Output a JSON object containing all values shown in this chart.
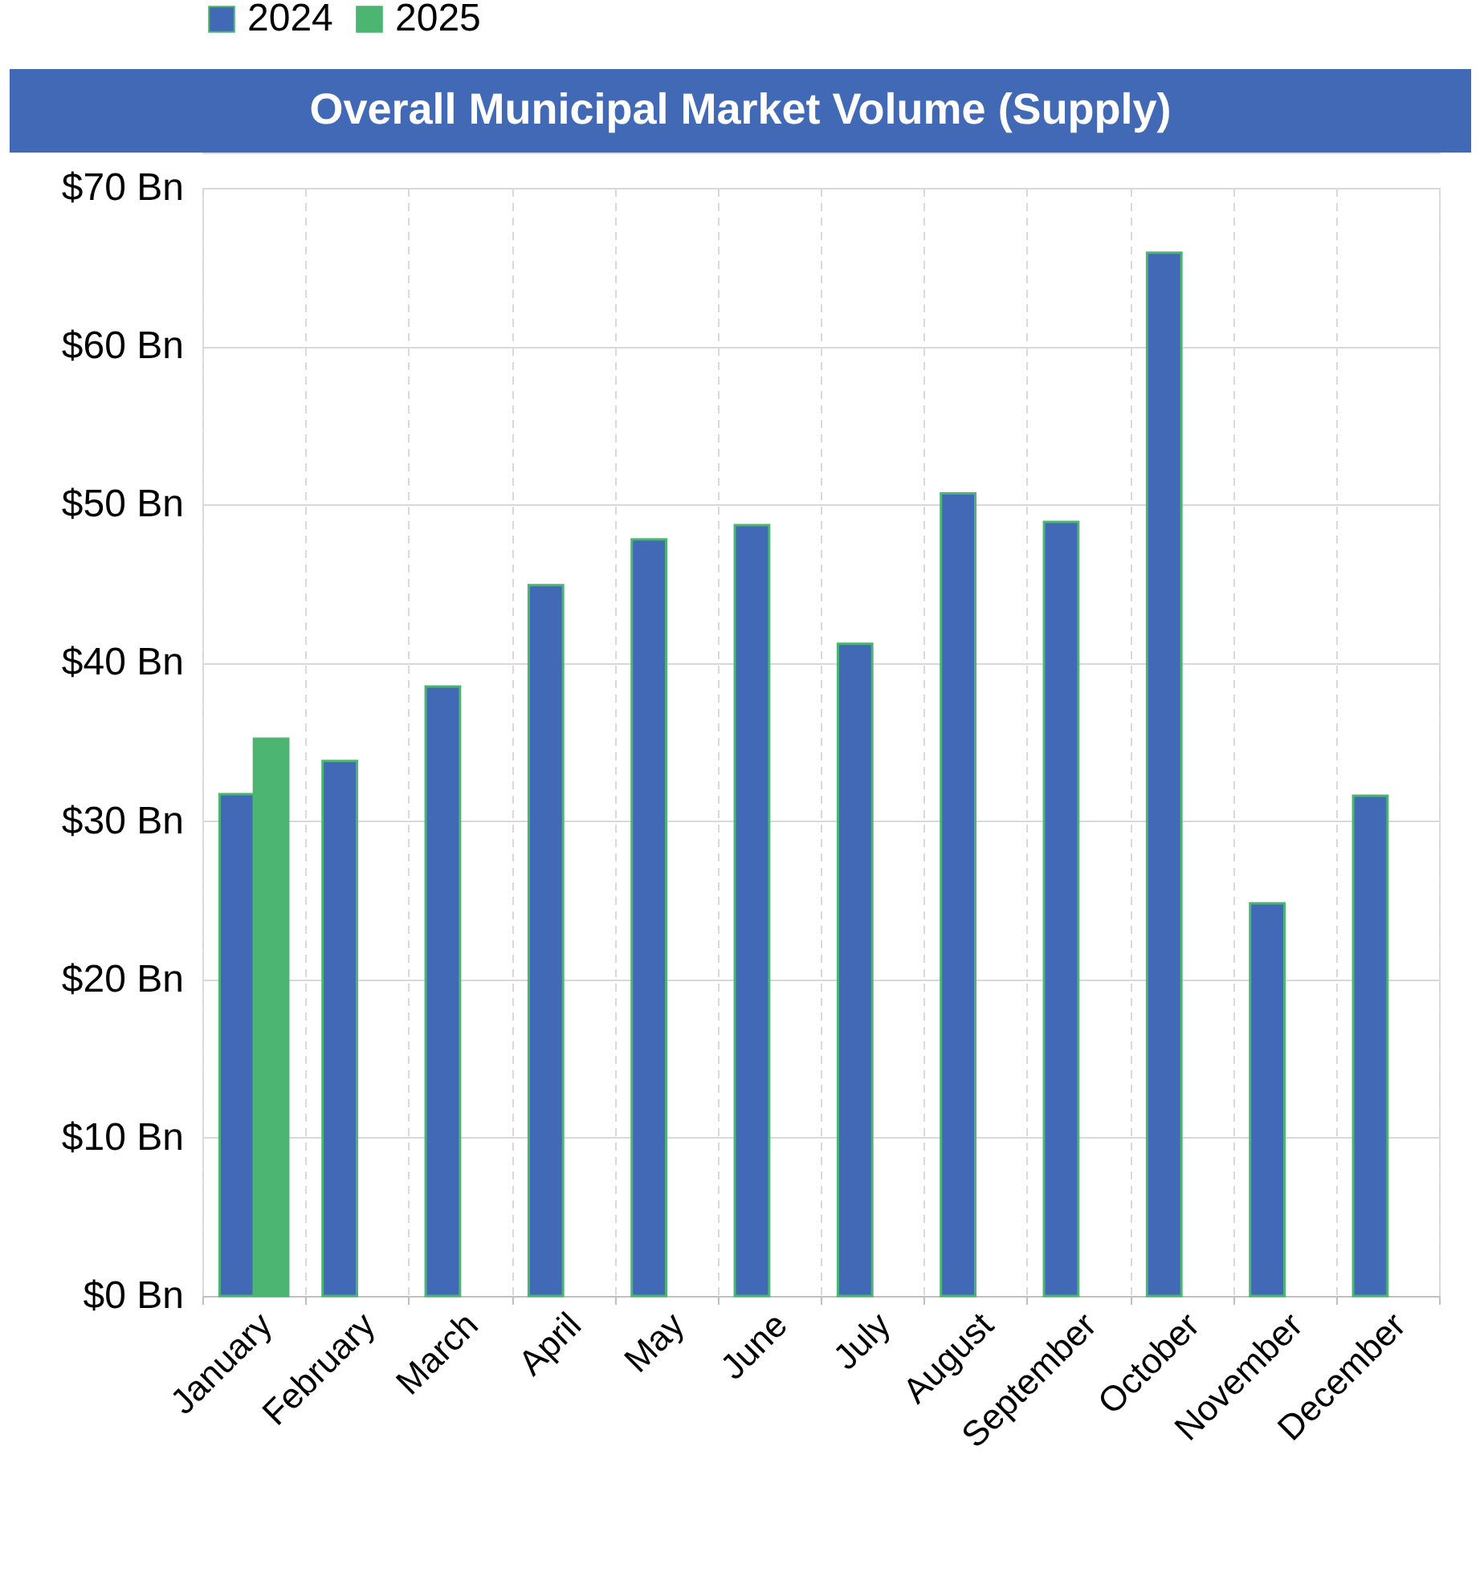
{
  "chart_data": {
    "type": "bar",
    "title": "Overall Municipal Market Volume (Supply)",
    "categories": [
      "January",
      "February",
      "March",
      "April",
      "May",
      "June",
      "July",
      "August",
      "September",
      "October",
      "November",
      "December"
    ],
    "series": [
      {
        "name": "2024",
        "color": "#4169b5",
        "values": [
          31.7,
          33.8,
          38.5,
          44.9,
          47.8,
          48.7,
          41.2,
          50.7,
          48.9,
          65.9,
          24.8,
          31.6
        ]
      },
      {
        "name": "2025",
        "color": "#4cb571",
        "values": [
          35.2,
          null,
          null,
          null,
          null,
          null,
          null,
          null,
          null,
          null,
          null,
          null
        ]
      }
    ],
    "ylim": [
      0,
      70
    ],
    "yticks": [
      {
        "value": 0,
        "label": "$0 Bn"
      },
      {
        "value": 10,
        "label": "$10 Bn"
      },
      {
        "value": 20,
        "label": "$20 Bn"
      },
      {
        "value": 30,
        "label": "$30 Bn"
      },
      {
        "value": 40,
        "label": "$40 Bn"
      },
      {
        "value": 50,
        "label": "$50 Bn"
      },
      {
        "value": 60,
        "label": "$60 Bn"
      },
      {
        "value": 70,
        "label": "$70 Bn"
      }
    ],
    "grid": true,
    "legend": "top"
  }
}
